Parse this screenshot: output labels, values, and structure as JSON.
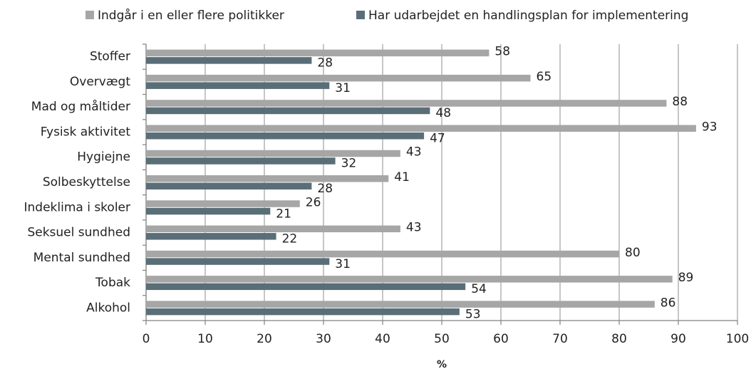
{
  "chart_data": {
    "type": "bar",
    "categories": [
      "Stoffer",
      "Overvægt",
      "Mad og måltider",
      "Fysisk aktivitet",
      "Hygiejne",
      "Solbeskyttelse",
      "Indeklima i skoler",
      "Seksuel sundhed",
      "Mental sundhed",
      "Tobak",
      "Alkohol"
    ],
    "series": [
      {
        "name": "Indgår i en eller flere politikker",
        "color": "#a6a6a6",
        "values": [
          58,
          65,
          88,
          93,
          43,
          41,
          26,
          43,
          80,
          89,
          86
        ]
      },
      {
        "name": "Har udarbejdet en handlingsplan for implementering",
        "color": "#5a6e78",
        "values": [
          28,
          31,
          48,
          47,
          32,
          28,
          21,
          22,
          31,
          54,
          53
        ]
      }
    ],
    "xlabel": "%",
    "xlim": [
      0,
      100
    ],
    "xticks": [
      0,
      10,
      20,
      30,
      40,
      50,
      60,
      70,
      80,
      90,
      100
    ],
    "grid": true,
    "legend": "top"
  }
}
